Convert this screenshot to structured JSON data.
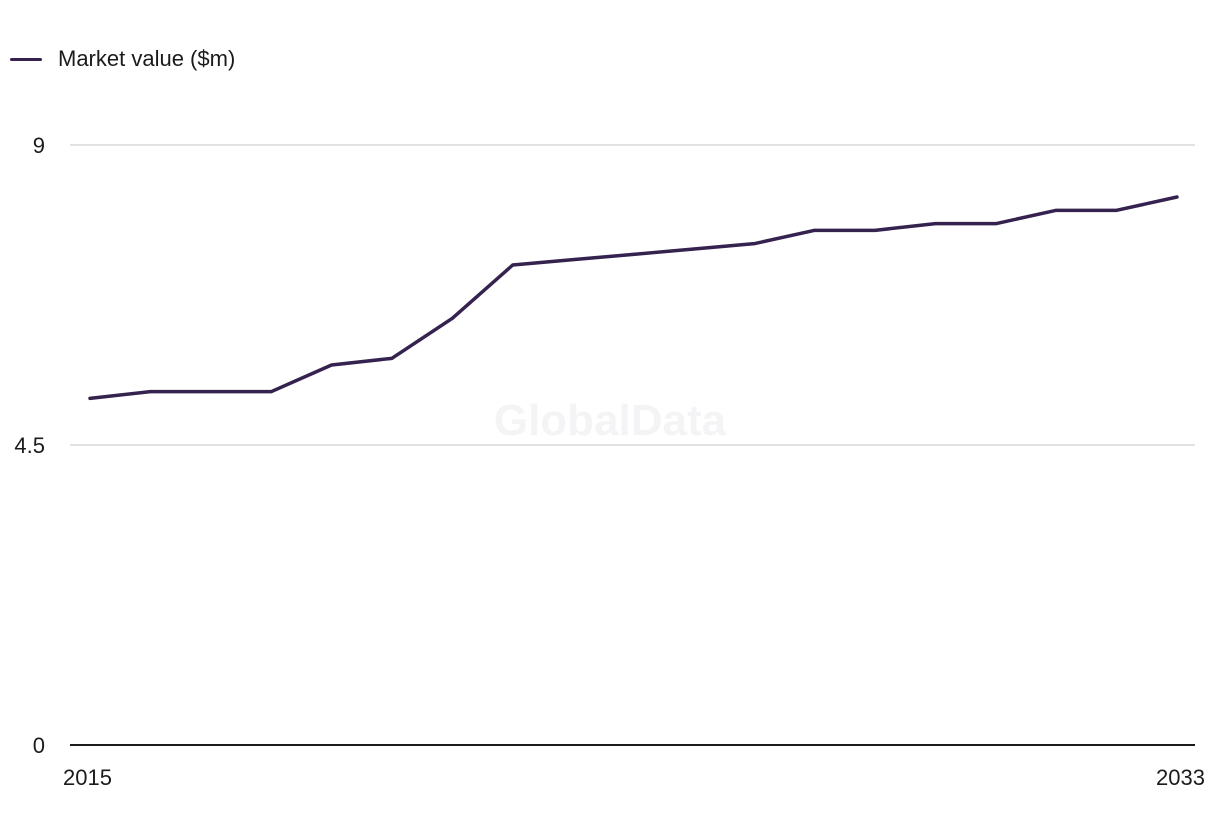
{
  "watermark": "GlobalData",
  "colors": {
    "series": "#35224f",
    "grid": "#d9d9d9",
    "axis": "#1b1b1b"
  },
  "chart_data": {
    "type": "line",
    "title": "",
    "xlabel": "",
    "ylabel": "",
    "x": [
      2015,
      2016,
      2017,
      2018,
      2019,
      2020,
      2021,
      2022,
      2023,
      2024,
      2025,
      2026,
      2027,
      2028,
      2029,
      2030,
      2031,
      2032,
      2033
    ],
    "series": [
      {
        "name": "Market value ($m)",
        "values": [
          5.2,
          5.3,
          5.3,
          5.3,
          5.7,
          5.8,
          6.4,
          7.2,
          7.28,
          7.36,
          7.44,
          7.52,
          7.72,
          7.72,
          7.82,
          7.82,
          8.02,
          8.02,
          8.22
        ]
      }
    ],
    "ylim": [
      0,
      9
    ],
    "yticks": [
      "0",
      "4.5",
      "9"
    ],
    "xticks": [
      "2015",
      "2033"
    ],
    "grid": true,
    "legend_position": "top-left"
  }
}
